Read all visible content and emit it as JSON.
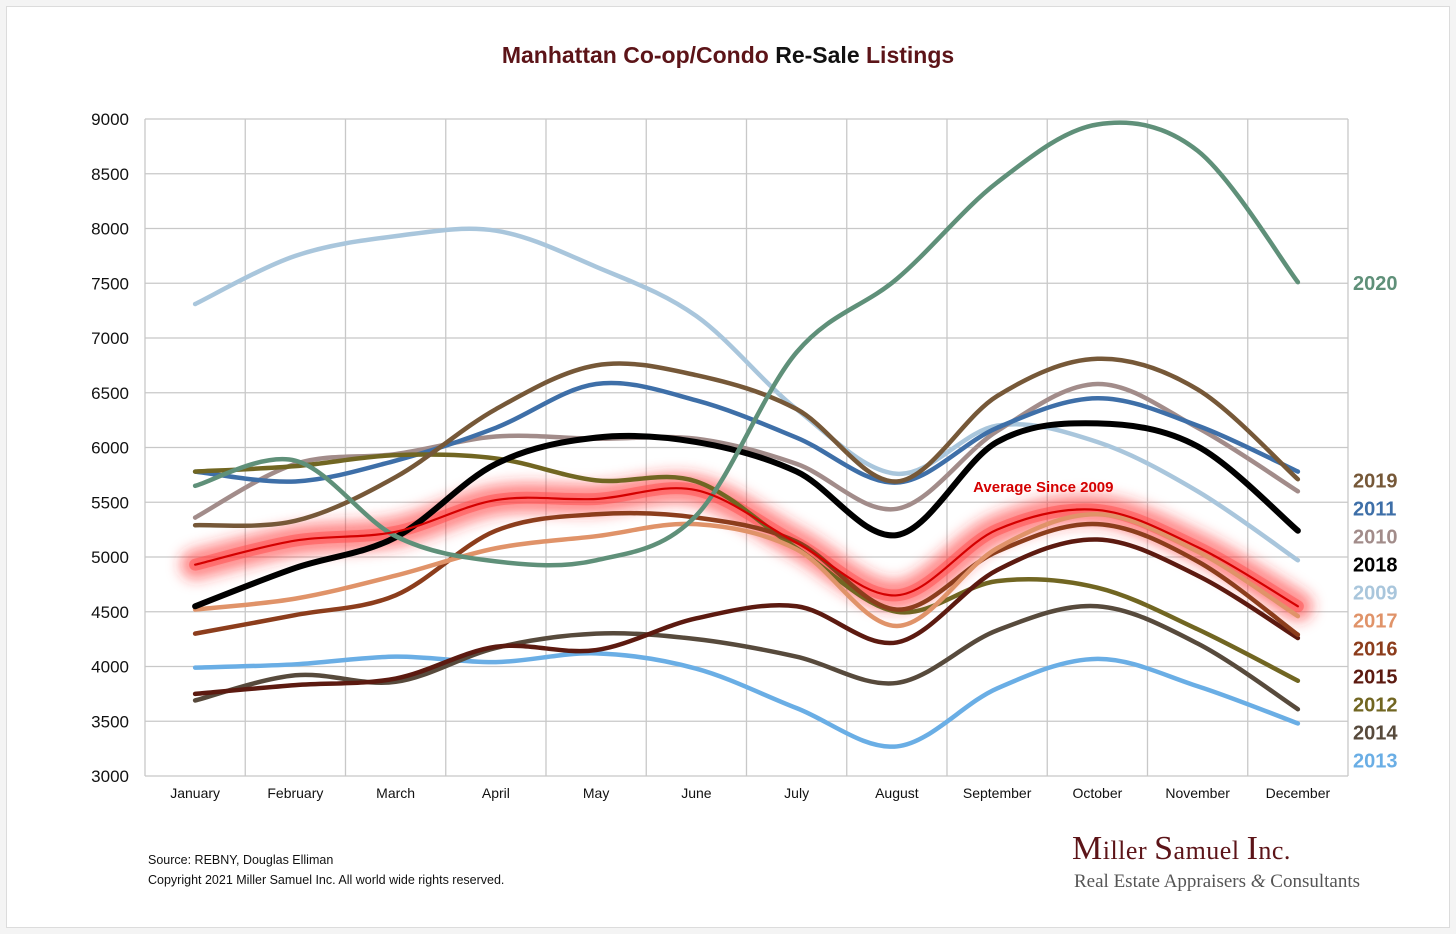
{
  "title": {
    "part1": "Manhattan Co-op/Condo ",
    "part2": "Re-Sale",
    "part3": " Listings"
  },
  "source_line": "Source: REBNY, Douglas Elliman",
  "copyright_line": "Copyright 2021 Miller Samuel Inc.  All world wide rights reserved.",
  "logo": {
    "line1_M": "M",
    "line1_a": "iller ",
    "line1_S": "S",
    "line1_b": "amuel ",
    "line1_I": "I",
    "line1_c": "nc.",
    "tag1": "Real Estate Appraisers ",
    "tag_amp": "&",
    "tag2": " Consultants"
  },
  "chart_data": {
    "type": "line",
    "title": "Manhattan Co-op/Condo Re-Sale Listings",
    "xlabel": "",
    "ylabel": "",
    "ylim": [
      3000,
      9000
    ],
    "yticks": [
      3000,
      3500,
      4000,
      4500,
      5000,
      5500,
      6000,
      6500,
      7000,
      7500,
      8000,
      8500,
      9000
    ],
    "categories": [
      "January",
      "February",
      "March",
      "April",
      "May",
      "June",
      "July",
      "August",
      "September",
      "October",
      "November",
      "December"
    ],
    "grid": true,
    "legend": "right, labels at line ends",
    "annotation": "Average  Since 2009",
    "series": [
      {
        "name": "2009",
        "color": "#a9c6dc",
        "values": [
          7310,
          7750,
          7930,
          7980,
          7650,
          7200,
          6350,
          5760,
          6200,
          6050,
          5600,
          4970
        ]
      },
      {
        "name": "2010",
        "color": "#a28c8a",
        "values": [
          5360,
          5850,
          5940,
          6100,
          6080,
          6080,
          5850,
          5440,
          6150,
          6580,
          6180,
          5600
        ]
      },
      {
        "name": "2011",
        "color": "#3e6fa8",
        "values": [
          5780,
          5690,
          5880,
          6180,
          6580,
          6430,
          6090,
          5680,
          6180,
          6450,
          6200,
          5780
        ]
      },
      {
        "name": "2012",
        "color": "#716622",
        "values": [
          5780,
          5830,
          5930,
          5900,
          5700,
          5690,
          5080,
          4500,
          4780,
          4720,
          4340,
          3870
        ]
      },
      {
        "name": "2013",
        "color": "#6aaee5",
        "values": [
          3990,
          4020,
          4090,
          4040,
          4120,
          3980,
          3620,
          3270,
          3800,
          4070,
          3820,
          3480
        ]
      },
      {
        "name": "2014",
        "color": "#574a3c",
        "values": [
          3690,
          3920,
          3860,
          4170,
          4300,
          4250,
          4090,
          3850,
          4330,
          4550,
          4210,
          3610
        ]
      },
      {
        "name": "2015",
        "color": "#5c1a10",
        "values": [
          3750,
          3830,
          3890,
          4180,
          4150,
          4440,
          4550,
          4220,
          4880,
          5160,
          4830,
          4260
        ]
      },
      {
        "name": "2016",
        "color": "#8c3d1c",
        "values": [
          4300,
          4470,
          4650,
          5240,
          5390,
          5360,
          5140,
          4520,
          5050,
          5300,
          4960,
          4290
        ]
      },
      {
        "name": "2017",
        "color": "#e09369",
        "values": [
          4520,
          4620,
          4830,
          5080,
          5190,
          5300,
          5070,
          4370,
          5080,
          5390,
          5050,
          4460
        ]
      },
      {
        "name": "2018",
        "color": "#000000",
        "values": [
          4550,
          4900,
          5180,
          5850,
          6090,
          6050,
          5780,
          5200,
          6050,
          6220,
          6010,
          5240
        ]
      },
      {
        "name": "2019",
        "color": "#765838",
        "values": [
          5290,
          5330,
          5730,
          6350,
          6750,
          6660,
          6350,
          5690,
          6470,
          6810,
          6530,
          5710
        ]
      },
      {
        "name": "2020",
        "color": "#5f9079",
        "values": [
          5650,
          5880,
          5190,
          4960,
          4970,
          5380,
          6870,
          7540,
          8420,
          8950,
          8710,
          7510
        ]
      },
      {
        "name": "Average  Since 2009",
        "color": "#d40000",
        "values": [
          4930,
          5150,
          5230,
          5520,
          5530,
          5610,
          5130,
          4650,
          5250,
          5430,
          5090,
          4550
        ]
      }
    ],
    "end_labels": [
      {
        "text": "2020",
        "color": "#5f9079"
      },
      {
        "text": "2019",
        "color": "#765838"
      },
      {
        "text": "2011",
        "color": "#3e6fa8"
      },
      {
        "text": "2010",
        "color": "#a28c8a"
      },
      {
        "text": "2018",
        "color": "#000000"
      },
      {
        "text": "2009",
        "color": "#a9c6dc"
      },
      {
        "text": "2017",
        "color": "#e09369"
      },
      {
        "text": "2016",
        "color": "#8c3d1c"
      },
      {
        "text": "2015",
        "color": "#5c1a10"
      },
      {
        "text": "2012",
        "color": "#716622"
      },
      {
        "text": "2014",
        "color": "#574a3c"
      },
      {
        "text": "2013",
        "color": "#6aaee5"
      }
    ]
  }
}
